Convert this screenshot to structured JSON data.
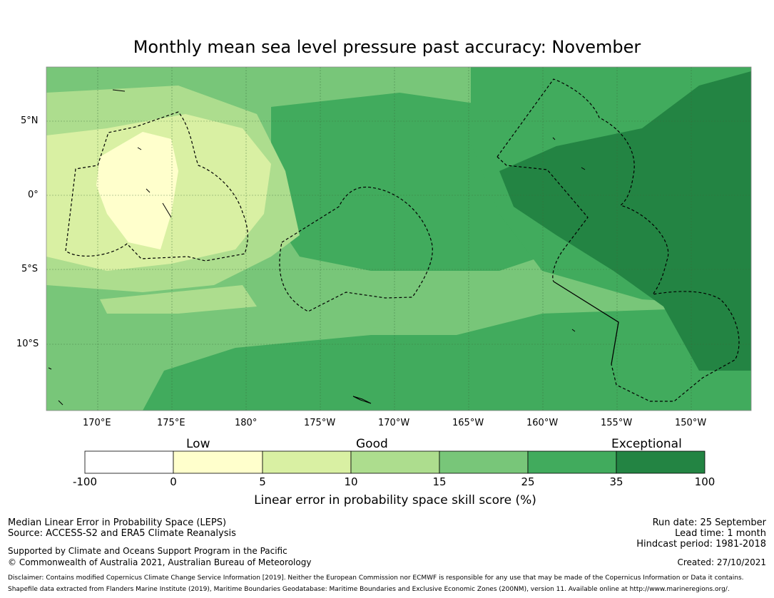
{
  "title": "Monthly mean sea level pressure past accuracy: November",
  "lat_labels": [
    "5°N",
    "0°",
    "5°S",
    "10°S"
  ],
  "lon_labels": [
    "170°E",
    "175°E",
    "180°",
    "175°W",
    "170°W",
    "165°W",
    "160°W",
    "155°W",
    "150°W"
  ],
  "legend": {
    "categories": [
      "Low",
      "Good",
      "Exceptional"
    ],
    "ticks": [
      "-100",
      "0",
      "5",
      "10",
      "15",
      "25",
      "35",
      "100"
    ],
    "colors": [
      "#ffffff",
      "#ffffcc",
      "#d9f0a3",
      "#addd8e",
      "#78c679",
      "#41ab5d",
      "#238443"
    ],
    "label": "Linear error in probability space skill score (%)"
  },
  "info_left": {
    "line1": "Median Linear Error in Probability Space (LEPS)",
    "line2": "Source: ACCESS-S2 and ERA5 Climate Reanalysis",
    "line3": "Supported by Climate and Oceans Support Program in the Pacific",
    "line4": "© Commonwealth of Australia 2021, Australian Bureau of Meteorology"
  },
  "info_right": {
    "run_date": "Run date: 25 September",
    "lead_time": "Lead time: 1 month",
    "hindcast": "Hindcast period: 1981-2018",
    "created": "Created: 27/10/2021"
  },
  "disclaimer": "Disclaimer: Contains modified Copernicus Climate Change Service Information [2019]. Neither the European Commission nor ECMWF is responsible for any use that may be made of the Copernicus Information or Data it contains.",
  "shapefile": "Shapefile data extracted from Flanders Marine Institute (2019), Maritime Boundaries Geodatabase: Maritime Boundaries and Exclusive Economic Zones (200NM), version 11. Available online at http://www.marineregions.org/."
}
